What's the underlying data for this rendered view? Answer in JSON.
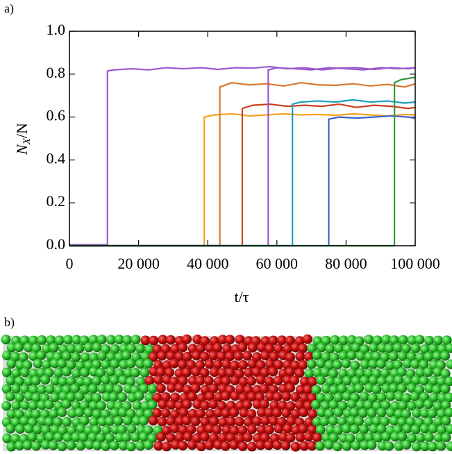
{
  "panel_labels": [
    "a)",
    "b)"
  ],
  "chart_data": {
    "type": "line",
    "xlabel": "t/τ",
    "ylabel": [
      "N",
      "X",
      "/N"
    ],
    "xlim": [
      0,
      100000
    ],
    "ylim": [
      0,
      1
    ],
    "xticks": [
      0,
      {
        "value": 20000,
        "label": "20 000"
      },
      {
        "value": 40000,
        "label": "40 000"
      },
      {
        "value": 60000,
        "label": "60 000"
      },
      {
        "value": 80000,
        "label": "80 000"
      },
      {
        "value": 100000,
        "label": "100 000"
      }
    ],
    "yticks": [
      {
        "value": 0,
        "label": "0.0"
      },
      0.2,
      0.4,
      0.6,
      0.8,
      {
        "value": 1,
        "label": "1.0"
      }
    ],
    "grid": false,
    "series": [
      {
        "color": "#9b59d0",
        "x": [
          0,
          11000,
          11000,
          13000,
          18000,
          23000,
          28000,
          33000,
          38000,
          43000,
          48000,
          53000,
          58000,
          63000,
          68000,
          73000,
          78000,
          83000,
          88000,
          93000,
          98000,
          100000
        ],
        "values": [
          0.005,
          0.005,
          0.815,
          0.82,
          0.825,
          0.82,
          0.83,
          0.825,
          0.83,
          0.822,
          0.83,
          0.828,
          0.835,
          0.825,
          0.83,
          0.82,
          0.828,
          0.83,
          0.822,
          0.83,
          0.825,
          0.83
        ]
      },
      {
        "color": "#f5a01e",
        "x": [
          0,
          39000,
          39000,
          42000,
          47000,
          52000,
          57000,
          62000,
          67000,
          72000,
          77000,
          82000,
          87000,
          92000,
          97000,
          100000
        ],
        "values": [
          0,
          0,
          0.6,
          0.61,
          0.615,
          0.605,
          0.61,
          0.615,
          0.61,
          0.612,
          0.608,
          0.615,
          0.61,
          0.605,
          0.612,
          0.61
        ]
      },
      {
        "color": "#d9782e",
        "x": [
          0,
          43500,
          43500,
          47000,
          52000,
          57000,
          62000,
          67000,
          72000,
          77000,
          82000,
          87000,
          92000,
          97000,
          100000
        ],
        "values": [
          0,
          0,
          0.74,
          0.76,
          0.75,
          0.755,
          0.745,
          0.76,
          0.75,
          0.748,
          0.755,
          0.745,
          0.752,
          0.74,
          0.755
        ]
      },
      {
        "color": "#c8401a",
        "x": [
          0,
          50000,
          50000,
          53000,
          58000,
          63000,
          68000,
          73000,
          78000,
          83000,
          88000,
          93000,
          98000,
          100000
        ],
        "values": [
          0,
          0,
          0.64,
          0.655,
          0.66,
          0.65,
          0.655,
          0.65,
          0.66,
          0.645,
          0.655,
          0.65,
          0.64,
          0.645
        ]
      },
      {
        "color": "#9b59d0",
        "x": [
          0,
          57500,
          57500,
          60000,
          65000,
          70000,
          75000,
          80000,
          85000,
          90000,
          95000,
          100000
        ],
        "values": [
          0,
          0,
          0.82,
          0.83,
          0.825,
          0.82,
          0.83,
          0.825,
          0.82,
          0.83,
          0.825,
          0.83
        ]
      },
      {
        "color": "#1b9dbf",
        "x": [
          0,
          64500,
          64500,
          67000,
          72000,
          77000,
          82000,
          87000,
          92000,
          97000,
          100000
        ],
        "values": [
          0,
          0,
          0.66,
          0.67,
          0.675,
          0.67,
          0.68,
          0.67,
          0.675,
          0.665,
          0.67
        ]
      },
      {
        "color": "#3a62c9",
        "x": [
          0,
          75000,
          75000,
          78000,
          83000,
          88000,
          93000,
          98000,
          100000
        ],
        "values": [
          0,
          0,
          0.59,
          0.6,
          0.595,
          0.6,
          0.605,
          0.6,
          0.595
        ]
      },
      {
        "color": "#2e9a36",
        "x": [
          0,
          94000,
          94000,
          96000,
          98000,
          100000
        ],
        "values": [
          0,
          0,
          0.76,
          0.775,
          0.78,
          0.785
        ]
      }
    ]
  }
}
